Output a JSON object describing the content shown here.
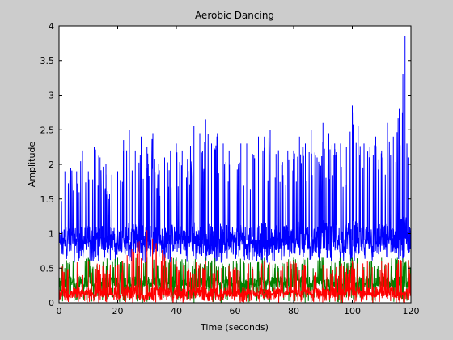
{
  "chart_data": {
    "type": "line",
    "title": "Aerobic Dancing",
    "xlabel": "Time (seconds)",
    "ylabel": "Amplitude",
    "xlim": [
      0,
      120
    ],
    "ylim": [
      0,
      4
    ],
    "xticks": [
      0,
      20,
      40,
      60,
      80,
      100,
      120
    ],
    "yticks": [
      0,
      0.5,
      1,
      1.5,
      2,
      2.5,
      3,
      3.5,
      4
    ],
    "xtick_labels": [
      "0",
      "20",
      "40",
      "60",
      "80",
      "100",
      "120"
    ],
    "ytick_labels": [
      "0",
      "0.5",
      "1",
      "1.5",
      "2",
      "2.5",
      "3",
      "3.5",
      "4"
    ],
    "grid": false,
    "legend": "none",
    "series": [
      {
        "color": "#0000ff",
        "x": [
          0,
          2,
          4,
          6,
          8,
          10,
          12,
          14,
          16,
          18,
          20,
          22,
          24,
          26,
          28,
          30,
          32,
          34,
          36,
          38,
          40,
          42,
          44,
          46,
          48,
          50,
          52,
          54,
          56,
          58,
          60,
          62,
          64,
          66,
          68,
          70,
          72,
          74,
          76,
          78,
          80,
          82,
          84,
          86,
          88,
          90,
          92,
          94,
          96,
          98,
          100,
          102,
          104,
          106,
          108,
          110,
          112,
          114,
          116,
          118,
          119,
          120
        ],
        "y_min": [
          0.55,
          0.6,
          0.55,
          0.6,
          0.6,
          0.55,
          0.6,
          0.6,
          0.55,
          0.6,
          0.55,
          0.6,
          0.55,
          0.6,
          0.6,
          0.55,
          0.6,
          0.55,
          0.6,
          0.55,
          0.6,
          0.55,
          0.6,
          0.6,
          0.55,
          0.6,
          0.55,
          0.6,
          0.55,
          0.6,
          0.55,
          0.6,
          0.55,
          0.6,
          0.55,
          0.6,
          0.55,
          0.6,
          0.55,
          0.6,
          0.55,
          0.6,
          0.55,
          0.6,
          0.55,
          0.6,
          0.55,
          0.6,
          0.55,
          0.6,
          0.55,
          0.6,
          0.55,
          0.6,
          0.55,
          0.6,
          0.55,
          0.6,
          0.55,
          0.6,
          0.6,
          0.55
        ],
        "y_max": [
          1.45,
          1.9,
          1.95,
          1.9,
          2.2,
          1.9,
          2.25,
          2.1,
          2.0,
          1.85,
          1.9,
          2.35,
          2.5,
          2.2,
          2.4,
          2.25,
          2.45,
          2.0,
          2.1,
          2.2,
          2.3,
          2.2,
          2.15,
          2.55,
          2.45,
          2.65,
          2.3,
          2.45,
          2.3,
          2.2,
          2.45,
          2.3,
          2.3,
          2.15,
          2.4,
          2.4,
          2.5,
          2.15,
          2.3,
          2.2,
          2.2,
          2.4,
          2.3,
          2.5,
          2.1,
          2.6,
          2.45,
          2.3,
          2.3,
          2.25,
          2.85,
          2.55,
          2.3,
          2.25,
          2.4,
          2.2,
          2.6,
          2.4,
          2.8,
          3.85,
          2.1,
          2.2
        ],
        "y_typical": [
          0.9,
          0.95,
          0.9,
          0.95,
          0.9,
          0.95,
          0.9,
          0.95,
          0.9,
          0.95,
          0.9,
          0.95,
          0.9,
          0.95,
          0.9,
          0.95,
          0.9,
          0.95,
          0.9,
          0.95,
          0.9,
          0.95,
          0.9,
          0.95,
          0.9,
          0.95,
          0.9,
          0.95,
          0.9,
          0.95,
          0.9,
          0.95,
          0.9,
          0.95,
          0.9,
          0.95,
          0.9,
          0.95,
          0.9,
          0.95,
          0.9,
          0.95,
          0.9,
          0.95,
          0.9,
          0.95,
          0.9,
          0.95,
          0.9,
          0.95,
          0.9,
          0.95,
          0.9,
          0.95,
          0.9,
          0.95,
          0.9,
          0.95,
          0.9,
          0.95,
          0.9,
          0.9
        ]
      },
      {
        "color": "#008000",
        "x": [
          0,
          10,
          20,
          30,
          40,
          50,
          60,
          70,
          80,
          90,
          100,
          110,
          120
        ],
        "y_min": [
          0,
          0,
          0,
          0,
          0,
          0,
          0,
          0,
          0,
          0,
          0,
          0,
          0
        ],
        "y_max": [
          0.65,
          0.65,
          0.65,
          0.65,
          0.65,
          0.65,
          0.65,
          0.65,
          0.65,
          0.65,
          0.65,
          0.65,
          0.65
        ],
        "y_typical": [
          0.3,
          0.3,
          0.3,
          0.3,
          0.3,
          0.3,
          0.3,
          0.3,
          0.3,
          0.3,
          0.3,
          0.3,
          0.3
        ]
      },
      {
        "color": "#ff0000",
        "x": [
          0,
          10,
          20,
          30,
          40,
          50,
          60,
          70,
          80,
          90,
          100,
          110,
          120
        ],
        "y_min": [
          0,
          0,
          0,
          0,
          0,
          0,
          0,
          0,
          0,
          0,
          0,
          0,
          0
        ],
        "y_max": [
          0.6,
          0.6,
          0.55,
          1.05,
          0.6,
          0.6,
          0.55,
          0.6,
          0.6,
          0.55,
          0.6,
          0.6,
          0.65
        ],
        "y_typical": [
          0.15,
          0.15,
          0.15,
          0.15,
          0.15,
          0.15,
          0.15,
          0.15,
          0.15,
          0.15,
          0.15,
          0.15,
          0.15
        ]
      }
    ]
  }
}
